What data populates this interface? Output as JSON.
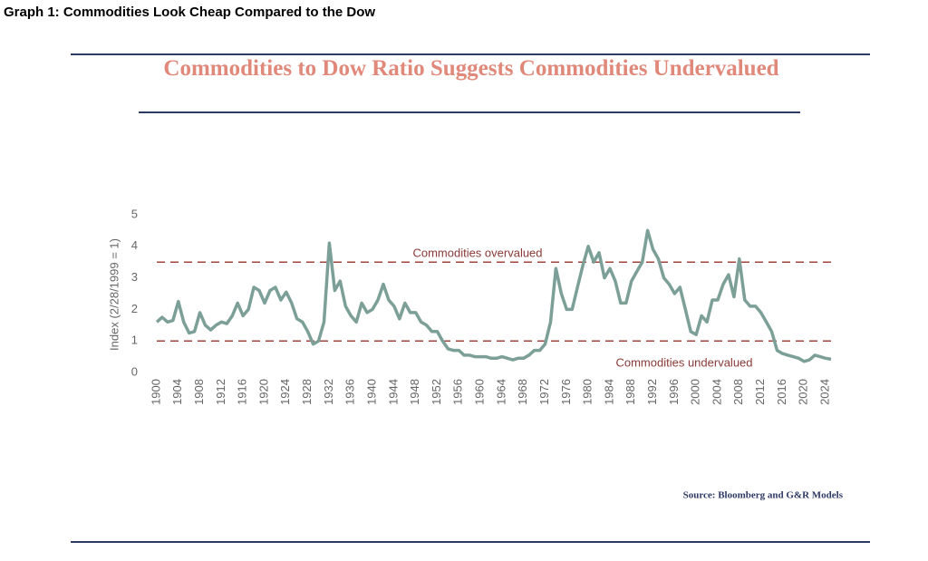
{
  "page_title": "Graph 1:  Commodities Look Cheap Compared to the Dow",
  "source": "Source:  Bloomberg and G&R Models",
  "chart_data": {
    "type": "line",
    "title": "Commodities to Dow Ratio Suggests Commodities Undervalued",
    "y_label": "Index (2/28/1999 = 1)",
    "color": "#7c9f98",
    "x": [
      1900,
      1901,
      1902,
      1903,
      1904,
      1905,
      1906,
      1907,
      1908,
      1909,
      1910,
      1911,
      1912,
      1913,
      1914,
      1915,
      1916,
      1917,
      1918,
      1919,
      1920,
      1921,
      1922,
      1923,
      1924,
      1925,
      1926,
      1927,
      1928,
      1929,
      1930,
      1931,
      1932,
      1933,
      1934,
      1935,
      1936,
      1937,
      1938,
      1939,
      1940,
      1941,
      1942,
      1943,
      1944,
      1945,
      1946,
      1947,
      1948,
      1949,
      1950,
      1951,
      1952,
      1953,
      1954,
      1955,
      1956,
      1957,
      1958,
      1959,
      1960,
      1961,
      1962,
      1963,
      1964,
      1965,
      1966,
      1967,
      1968,
      1969,
      1970,
      1971,
      1972,
      1973,
      1974,
      1975,
      1976,
      1977,
      1978,
      1979,
      1980,
      1981,
      1982,
      1983,
      1984,
      1985,
      1986,
      1987,
      1988,
      1989,
      1990,
      1991,
      1992,
      1993,
      1994,
      1995,
      1996,
      1997,
      1998,
      1999,
      2000,
      2001,
      2002,
      2003,
      2004,
      2005,
      2006,
      2007,
      2008,
      2009,
      2010,
      2011,
      2012,
      2013,
      2014,
      2015,
      2016,
      2017,
      2018,
      2019,
      2020,
      2021,
      2022,
      2023,
      2024,
      2025
    ],
    "values": [
      1.6,
      1.75,
      1.6,
      1.65,
      2.25,
      1.6,
      1.25,
      1.3,
      1.9,
      1.5,
      1.35,
      1.5,
      1.6,
      1.55,
      1.8,
      2.2,
      1.8,
      2.0,
      2.7,
      2.6,
      2.2,
      2.6,
      2.7,
      2.3,
      2.55,
      2.2,
      1.7,
      1.6,
      1.3,
      0.9,
      1.0,
      1.6,
      4.1,
      2.6,
      2.9,
      2.1,
      1.8,
      1.6,
      2.2,
      1.9,
      2.0,
      2.3,
      2.8,
      2.3,
      2.1,
      1.7,
      2.2,
      1.9,
      1.9,
      1.6,
      1.5,
      1.3,
      1.3,
      1.0,
      0.75,
      0.7,
      0.7,
      0.55,
      0.55,
      0.5,
      0.5,
      0.5,
      0.45,
      0.45,
      0.5,
      0.45,
      0.4,
      0.45,
      0.45,
      0.55,
      0.7,
      0.7,
      0.9,
      1.6,
      3.3,
      2.5,
      2.0,
      2.0,
      2.7,
      3.4,
      4.0,
      3.5,
      3.8,
      3.0,
      3.3,
      2.9,
      2.2,
      2.2,
      2.9,
      3.2,
      3.5,
      4.5,
      3.9,
      3.6,
      3.0,
      2.8,
      2.5,
      2.7,
      2.0,
      1.3,
      1.2,
      1.8,
      1.6,
      2.3,
      2.3,
      2.8,
      3.1,
      2.4,
      3.6,
      2.3,
      2.1,
      2.1,
      1.9,
      1.6,
      1.3,
      0.7,
      0.6,
      0.55,
      0.5,
      0.45,
      0.35,
      0.4,
      0.55,
      0.5,
      0.45,
      0.42
    ],
    "xlim": [
      1899,
      2025
    ],
    "xticks": [
      1900,
      1904,
      1908,
      1912,
      1916,
      1920,
      1924,
      1928,
      1932,
      1936,
      1940,
      1944,
      1948,
      1952,
      1956,
      1960,
      1964,
      1968,
      1972,
      1976,
      1980,
      1984,
      1988,
      1992,
      1996,
      2000,
      2004,
      2008,
      2012,
      2016,
      2020,
      2024
    ],
    "ylim": [
      0,
      5
    ],
    "yticks": [
      0,
      1,
      2,
      3,
      4,
      5
    ],
    "grid": false,
    "reference_lines": [
      {
        "value": 3.5,
        "label": "Commodities overvalued",
        "color": "#a0443e"
      },
      {
        "value": 1,
        "label": "Commodities undervalued",
        "color": "#a0443e"
      }
    ]
  }
}
